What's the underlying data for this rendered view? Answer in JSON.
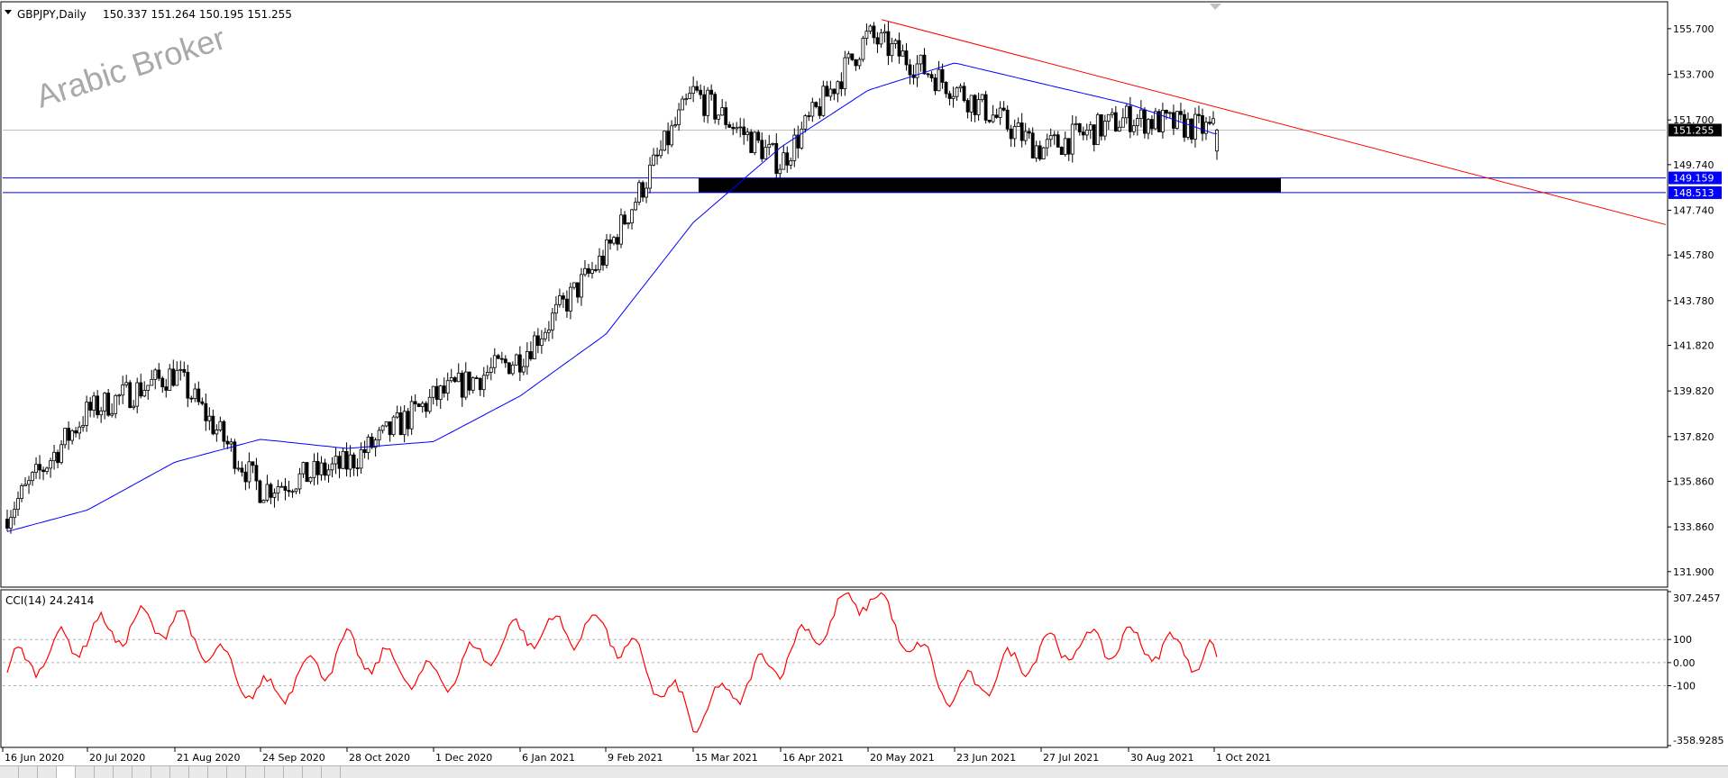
{
  "chart_header": {
    "symbol_label": "GBPJPY,Daily",
    "ohlc": "150.337 151.264 150.195 151.255"
  },
  "watermark": "Arabic Broker",
  "price_axis": {
    "ticks": [
      "155.700",
      "153.700",
      "151.700",
      "149.740",
      "147.740",
      "145.780",
      "143.780",
      "141.820",
      "139.820",
      "137.820",
      "135.860",
      "133.860",
      "131.900"
    ],
    "current_price_label": "151.255",
    "level_labels": [
      "149.159",
      "148.513"
    ]
  },
  "time_axis": {
    "ticks": [
      "16 Jun 2020",
      "20 Jul 2020",
      "21 Aug 2020",
      "24 Sep 2020",
      "28 Oct 2020",
      "1 Dec 2020",
      "6 Jan 2021",
      "9 Feb 2021",
      "15 Mar 2021",
      "16 Apr 2021",
      "20 May 2021",
      "23 Jun 2021",
      "27 Jul 2021",
      "30 Aug 2021",
      "1 Oct 2021"
    ]
  },
  "indicator": {
    "label": "CCI(14) 24.2414",
    "ticks": [
      "307.2457",
      "100",
      "0.00",
      "-100",
      "-358.9285"
    ]
  },
  "colors": {
    "candle": "#000000",
    "moving_average": "#0000ff",
    "trendline": "#ff0000",
    "horizontal_levels": "#0000ff",
    "support_zone": "#000000",
    "cci_line": "#ff0000",
    "level_label_bg": "#0000ff",
    "current_price_bg": "#000000"
  },
  "chart_data": [
    {
      "type": "candlestick",
      "symbol": "GBPJPY",
      "timeframe": "Daily",
      "x": [
        "16 Jun 2020",
        "20 Jul 2020",
        "21 Aug 2020",
        "24 Sep 2020",
        "28 Oct 2020",
        "1 Dec 2020",
        "6 Jan 2021",
        "9 Feb 2021",
        "15 Mar 2021",
        "16 Apr 2021",
        "20 May 2021",
        "23 Jun 2021",
        "27 Jul 2021",
        "30 Aug 2021",
        "1 Oct 2021"
      ],
      "close": [
        134.2,
        138.9,
        140.6,
        135.5,
        136.6,
        139.5,
        141.3,
        145.8,
        152.9,
        149.8,
        155.4,
        153.1,
        150.4,
        151.8,
        151.255
      ],
      "moving_average": [
        133.6,
        134.6,
        136.7,
        137.7,
        137.3,
        137.6,
        139.6,
        142.3,
        147.2,
        150.5,
        153.0,
        154.2,
        153.3,
        152.4,
        151.1
      ],
      "last_bar": {
        "open": 150.337,
        "high": 151.264,
        "low": 150.195,
        "close": 151.255
      },
      "levels": [
        149.159,
        148.513
      ],
      "support_zone": [
        148.513,
        149.159
      ],
      "trendline": {
        "from": {
          "date": "20 May 2021",
          "price": 156.1
        },
        "to": {
          "date": "1 Oct 2021",
          "price": 152.2
        }
      },
      "ylim": [
        131.3,
        156.8
      ],
      "grid": false
    },
    {
      "type": "line",
      "name": "CCI(14)",
      "current_value": 24.2414,
      "x": [
        "16 Jun 2020",
        "20 Jul 2020",
        "21 Aug 2020",
        "24 Sep 2020",
        "28 Oct 2020",
        "1 Dec 2020",
        "6 Jan 2021",
        "9 Feb 2021",
        "15 Mar 2021",
        "16 Apr 2021",
        "20 May 2021",
        "23 Jun 2021",
        "27 Jul 2021",
        "30 Aug 2021",
        "1 Oct 2021"
      ],
      "values": [
        -40,
        120,
        185,
        -150,
        60,
        -80,
        130,
        150,
        -240,
        20,
        307,
        -150,
        60,
        90,
        24.24
      ],
      "reference_lines": [
        100,
        0,
        -100
      ],
      "ylim": [
        -358.9285,
        307.2457
      ]
    }
  ]
}
